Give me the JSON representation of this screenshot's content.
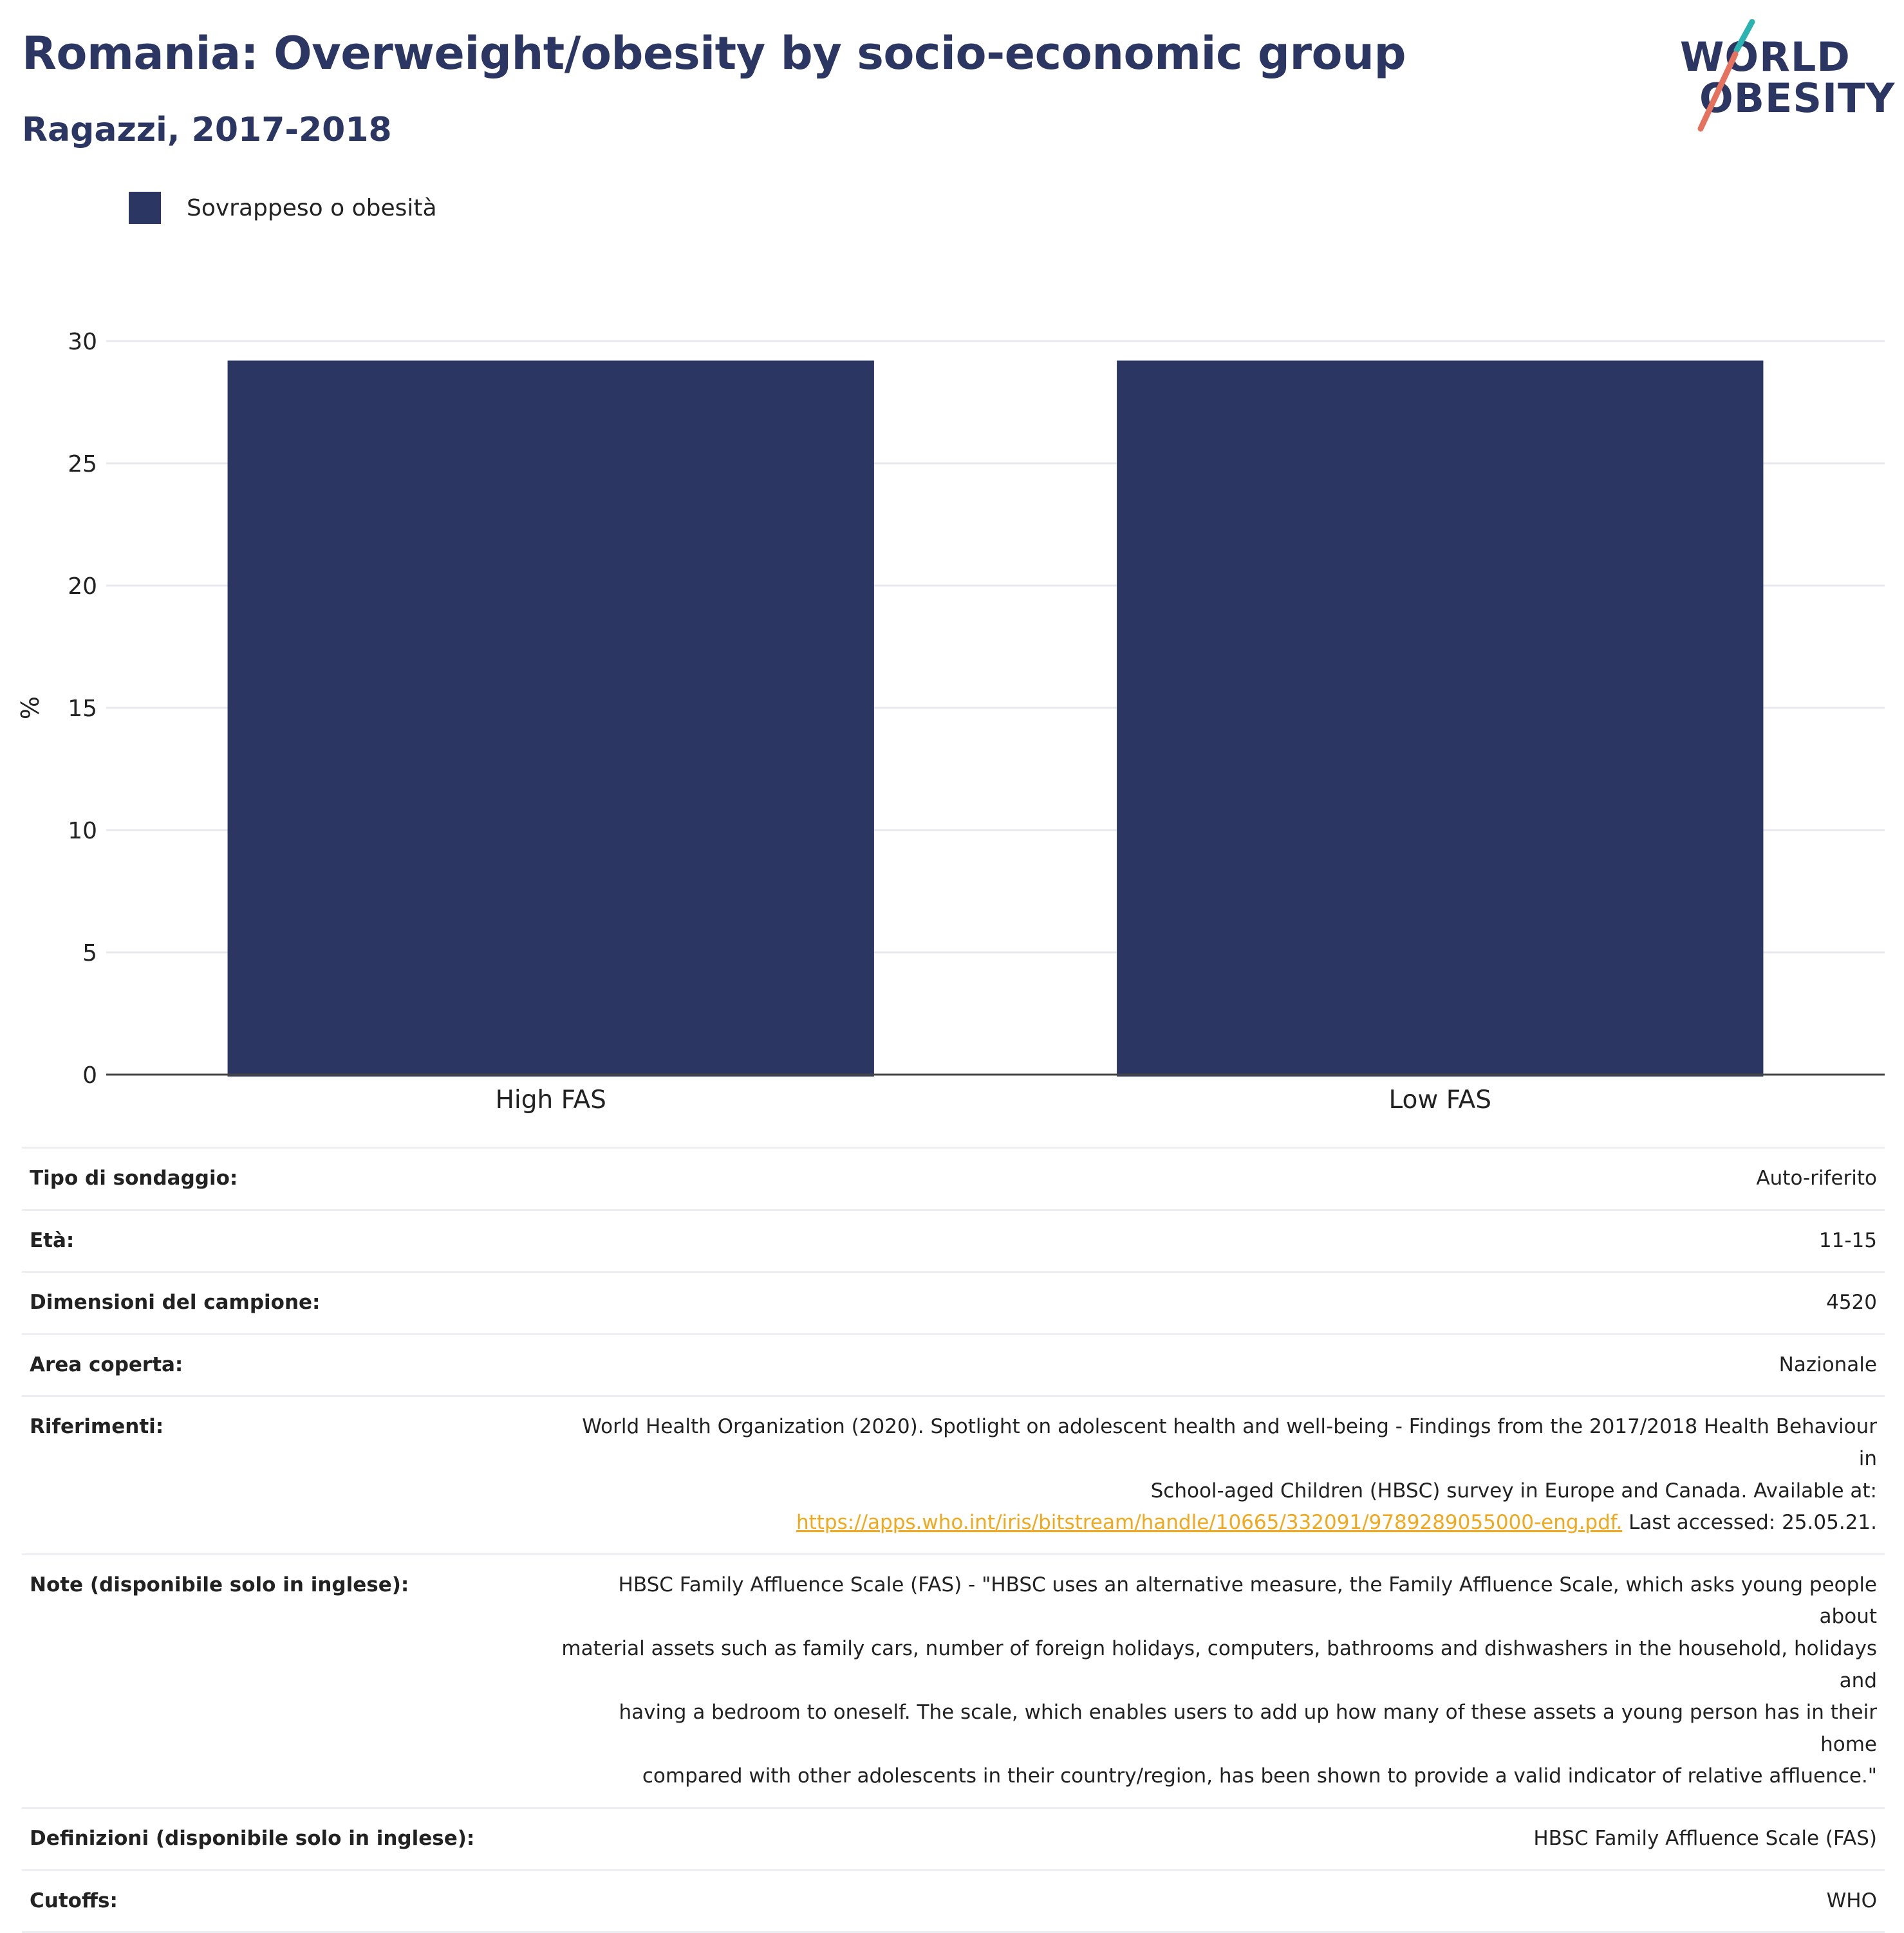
{
  "header": {
    "title": "Romania: Overweight/obesity by socio-economic group",
    "subtitle": "Ragazzi, 2017-2018"
  },
  "logo": {
    "line1": "WORLD",
    "line2": "OBESITY",
    "colors": {
      "navy": "#2b3762",
      "teal": "#2ab3b1",
      "coral": "#e5725f"
    }
  },
  "legend": {
    "label": "Sovrappeso o obesità",
    "color": "#2b3762"
  },
  "chart_data": {
    "type": "bar",
    "categories": [
      "High FAS",
      "Low FAS"
    ],
    "series": [
      {
        "name": "Sovrappeso o obesità",
        "values": [
          29.2,
          29.2
        ],
        "color": "#2b3762"
      }
    ],
    "ylabel": "%",
    "ylim": [
      0,
      30
    ],
    "yticks": [
      0,
      5,
      10,
      15,
      20,
      25,
      30
    ],
    "grid": true
  },
  "meta": {
    "rows": [
      {
        "key": "Tipo di sondaggio:",
        "value": "Auto-riferito"
      },
      {
        "key": "Età:",
        "value": "11-15"
      },
      {
        "key": "Dimensioni del campione:",
        "value": "4520"
      },
      {
        "key": "Area coperta:",
        "value": "Nazionale"
      }
    ],
    "references": {
      "key": "Riferimenti:",
      "text_line1": "World Health Organization (2020). Spotlight on adolescent health and well-being - Findings from the 2017/2018 Health Behaviour in",
      "text_line2": "School-aged Children (HBSC) survey in Europe and Canada. Available at:",
      "link": "https://apps.who.int/iris/bitstream/handle/10665/332091/9789289055000-eng.pdf.",
      "after_link": " Last accessed: 25.05.21."
    },
    "notes": {
      "key": "Note (disponibile solo in inglese):",
      "lines": [
        "HBSC Family Affluence Scale (FAS) - \"HBSC uses an alternative measure, the Family Affluence Scale, which asks young people about",
        "material assets such as family cars, number of foreign holidays, computers, bathrooms and dishwashers in the household, holidays and",
        "having a bedroom to oneself. The scale, which enables users to add up how many of these assets a young person has in their home",
        "compared with other adolescents in their country/region, has been shown to provide a valid indicator of relative affluence.\""
      ]
    },
    "definitions": {
      "key": "Definizioni (disponibile solo in inglese):",
      "value": "HBSC Family Affluence Scale (FAS)"
    },
    "cutoffs": {
      "key": "Cutoffs:",
      "value": "WHO"
    }
  }
}
